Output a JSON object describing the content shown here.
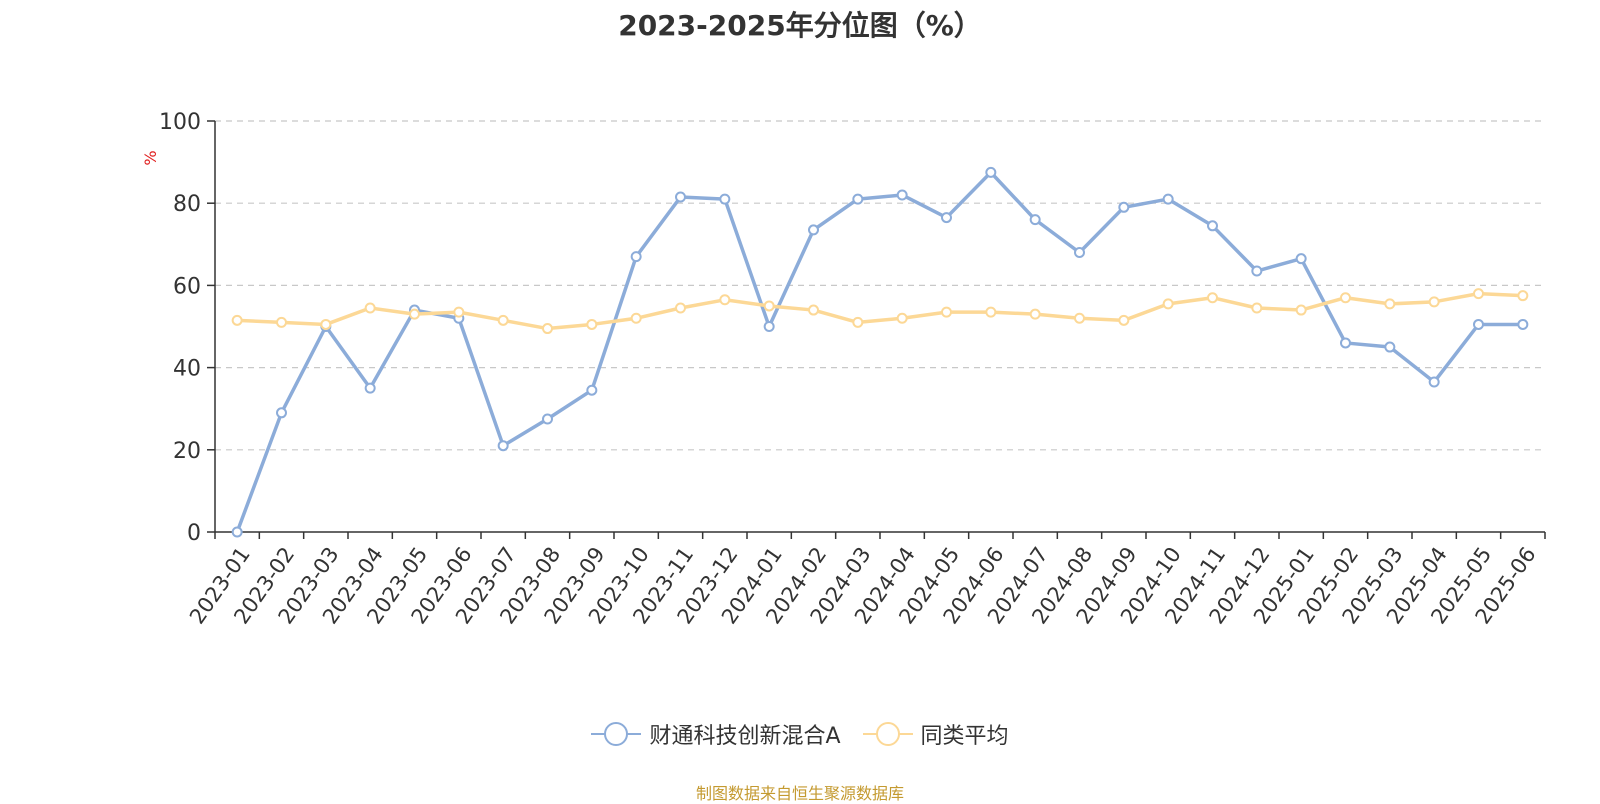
{
  "title": "2023-2025年分位图（%）",
  "source": "制图数据来自恒生聚源数据库",
  "chart_data": {
    "type": "line",
    "title": "2023-2025年分位图（%）",
    "ylabel": "%",
    "xlabel": "",
    "ylim": [
      0,
      100
    ],
    "yticks": [
      0,
      20,
      40,
      60,
      80,
      100
    ],
    "grid": true,
    "legend_position": "bottom",
    "categories": [
      "2023-01",
      "2023-02",
      "2023-03",
      "2023-04",
      "2023-05",
      "2023-06",
      "2023-07",
      "2023-08",
      "2023-09",
      "2023-10",
      "2023-11",
      "2023-12",
      "2024-01",
      "2024-02",
      "2024-03",
      "2024-04",
      "2024-05",
      "2024-06",
      "2024-07",
      "2024-08",
      "2024-09",
      "2024-10",
      "2024-11",
      "2024-12",
      "2025-01",
      "2025-02",
      "2025-03",
      "2025-04",
      "2025-05",
      "2025-06"
    ],
    "series": [
      {
        "name": "财通科技创新混合A",
        "color": "#8cacd9",
        "values": [
          0,
          29,
          50,
          35,
          54,
          52,
          21,
          27.5,
          34.5,
          67,
          81.5,
          81,
          50,
          73.5,
          81,
          82,
          76.5,
          87.5,
          76,
          68,
          79,
          81,
          74.5,
          63.5,
          66.5,
          46,
          45,
          36.5,
          50.5,
          50.5
        ]
      },
      {
        "name": "同类平均",
        "color": "#fcd896",
        "values": [
          51.5,
          51,
          50.5,
          54.5,
          53,
          53.5,
          51.5,
          49.5,
          50.5,
          52,
          54.5,
          56.5,
          55,
          54,
          51,
          52,
          53.5,
          53.5,
          53,
          52,
          51.5,
          55.5,
          57,
          54.5,
          54,
          57,
          55.5,
          56,
          58,
          57.5
        ]
      }
    ]
  }
}
